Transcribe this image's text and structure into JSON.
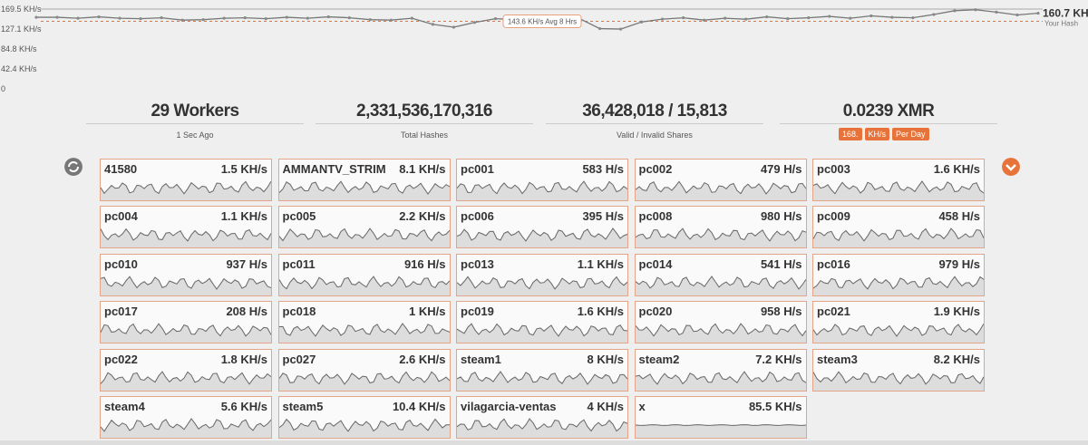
{
  "hash_chart": {
    "type": "line",
    "ylim": [
      0,
      169.5
    ],
    "yticks": [
      {
        "value": 169.5,
        "label": "169.5 KH/s"
      },
      {
        "value": 127.1,
        "label": "127.1 KH/s"
      },
      {
        "value": 84.8,
        "label": "84.8 KH/s"
      },
      {
        "value": 42.4,
        "label": "42.4 KH/s"
      },
      0
    ],
    "values": [
      152,
      152,
      150,
      153,
      150,
      149,
      151,
      146,
      147,
      150,
      151,
      149,
      152,
      150,
      153,
      151,
      147,
      146,
      150,
      137,
      131,
      141,
      149,
      147,
      152,
      146,
      150,
      128,
      127,
      142,
      148,
      151,
      146,
      150,
      148,
      153,
      149,
      151,
      154,
      150,
      155,
      152,
      151,
      158,
      166,
      168,
      163,
      157,
      160.7
    ],
    "current": {
      "value": 160.7,
      "label": "160.7 KH/s"
    },
    "current_caption": "Your Hash",
    "average": {
      "value": 143.6,
      "label": "143.6 KH/s Avg 8 Hrs"
    }
  },
  "stats": [
    {
      "value": "29 Workers",
      "caption": "1 Sec Ago"
    },
    {
      "value": "2,331,536,170,316",
      "caption": "Total Hashes"
    },
    {
      "value": "36,428,018 / 15,813",
      "caption": "Valid / Invalid Shares"
    },
    {
      "value": "0.0239 XMR"
    }
  ],
  "controls": {
    "amount": "168.",
    "unit": "KH/s",
    "period": "Per Day"
  },
  "workers": [
    {
      "name": "41580",
      "rate": "1.5 KH/s"
    },
    {
      "name": "AMMANTV_STRIM",
      "rate": "8.1 KH/s"
    },
    {
      "name": "pc001",
      "rate": "583 H/s"
    },
    {
      "name": "pc002",
      "rate": "479 H/s"
    },
    {
      "name": "pc003",
      "rate": "1.6 KH/s"
    },
    {
      "name": "pc004",
      "rate": "1.1 KH/s"
    },
    {
      "name": "pc005",
      "rate": "2.2 KH/s"
    },
    {
      "name": "pc006",
      "rate": "395 H/s"
    },
    {
      "name": "pc008",
      "rate": "980 H/s"
    },
    {
      "name": "pc009",
      "rate": "458 H/s"
    },
    {
      "name": "pc010",
      "rate": "937 H/s"
    },
    {
      "name": "pc011",
      "rate": "916 H/s"
    },
    {
      "name": "pc013",
      "rate": "1.1 KH/s"
    },
    {
      "name": "pc014",
      "rate": "541 H/s"
    },
    {
      "name": "pc016",
      "rate": "979 H/s"
    },
    {
      "name": "pc017",
      "rate": "208 H/s"
    },
    {
      "name": "pc018",
      "rate": "1 KH/s"
    },
    {
      "name": "pc019",
      "rate": "1.6 KH/s"
    },
    {
      "name": "pc020",
      "rate": "958 H/s"
    },
    {
      "name": "pc021",
      "rate": "1.9 KH/s"
    },
    {
      "name": "pc022",
      "rate": "1.8 KH/s"
    },
    {
      "name": "pc027",
      "rate": "2.6 KH/s"
    },
    {
      "name": "steam1",
      "rate": "8 KH/s"
    },
    {
      "name": "steam2",
      "rate": "7.2 KH/s"
    },
    {
      "name": "steam3",
      "rate": "8.2 KH/s"
    },
    {
      "name": "steam4",
      "rate": "5.6 KH/s"
    },
    {
      "name": "steam5",
      "rate": "10.4 KH/s"
    },
    {
      "name": "vilagarcia-ventas",
      "rate": "4 KH/s"
    },
    {
      "name": "x",
      "rate": "85.5 KH/s"
    }
  ]
}
